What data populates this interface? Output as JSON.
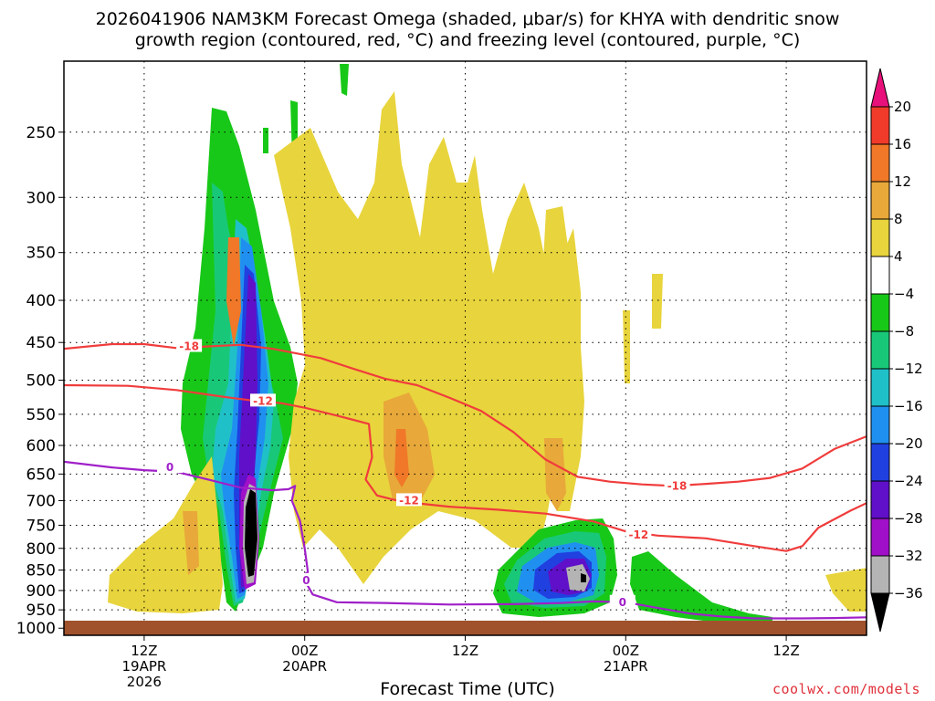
{
  "title_line1": "2026041906 NAM3KM Forecast Omega (shaded, μbar/s) for KHYA with dendritic snow",
  "title_line2": "growth region (contoured, red, °C) and freezing level (contoured, purple, °C)",
  "xlabel": "Forecast Time (UTC)",
  "credit": "coolwx.com/models",
  "chart_data": {
    "type": "heatmap",
    "title": "2026041906 NAM3KM Forecast Omega (shaded, μbar/s) for KHYA with dendritic snow growth region (contoured, red, °C) and freezing level (contoured, purple, °C)",
    "xlabel": "Forecast Time (UTC)",
    "ylabel": "",
    "y_axis": "pressure (hPa), inverted",
    "y_ticks": [
      250,
      300,
      350,
      400,
      450,
      500,
      550,
      600,
      650,
      700,
      750,
      800,
      850,
      900,
      950,
      1000
    ],
    "ylim": [
      1020,
      205
    ],
    "x_axis_hours_from_start": [
      0,
      50
    ],
    "x_ticks": [
      {
        "line1": "12Z",
        "line2": "19APR",
        "line3": "2026",
        "hour": 5
      },
      {
        "line1": "00Z",
        "line2": "20APR",
        "line3": "",
        "hour": 15
      },
      {
        "line1": "12Z",
        "line2": "",
        "line3": "",
        "hour": 25
      },
      {
        "line1": "00Z",
        "line2": "21APR",
        "line3": "",
        "hour": 35
      },
      {
        "line1": "12Z",
        "line2": "",
        "line3": "",
        "hour": 45
      }
    ],
    "grid": true,
    "colorbar": {
      "position": "right",
      "labels": [
        "20",
        "16",
        "12",
        "8",
        "4",
        "−4",
        "−8",
        "−12",
        "−16",
        "−20",
        "−24",
        "−28",
        "−32",
        "−36"
      ],
      "levels_top_to_bottom": [
        {
          "range": "> 20",
          "color": "#e8107a"
        },
        {
          "range": "16 to 20",
          "color": "#f03a2a"
        },
        {
          "range": "12 to 16",
          "color": "#f07828"
        },
        {
          "range": "8 to 12",
          "color": "#e8a83a"
        },
        {
          "range": "4 to 8",
          "color": "#e8d43c"
        },
        {
          "range": "-4 to 4",
          "color": "#ffffff"
        },
        {
          "range": "-8 to -4",
          "color": "#18c818"
        },
        {
          "range": "-12 to -8",
          "color": "#18c878"
        },
        {
          "range": "-16 to -12",
          "color": "#20c0c8"
        },
        {
          "range": "-20 to -16",
          "color": "#2090f0"
        },
        {
          "range": "-24 to -20",
          "color": "#2040e0"
        },
        {
          "range": "-28 to -24",
          "color": "#6010c8"
        },
        {
          "range": "-32 to -28",
          "color": "#a010c8"
        },
        {
          "range": "-36 to -32",
          "color": "#b4b4b4"
        },
        {
          "range": "< -36",
          "color": "#000000"
        }
      ]
    },
    "ground_color": "#a0522d",
    "contours": [
      {
        "name": "-18",
        "color": "#f03c3c",
        "label_points": [
          {
            "hour": 7.8,
            "p": 455
          },
          {
            "hour": 38.2,
            "p": 672
          }
        ],
        "points": [
          [
            0,
            458
          ],
          [
            3,
            452
          ],
          [
            5,
            452
          ],
          [
            7,
            457
          ],
          [
            9,
            455
          ],
          [
            11,
            453
          ],
          [
            13,
            458
          ],
          [
            16,
            470
          ],
          [
            18,
            484
          ],
          [
            20,
            498
          ],
          [
            22,
            507
          ],
          [
            24,
            525
          ],
          [
            26,
            545
          ],
          [
            28,
            578
          ],
          [
            30,
            624
          ],
          [
            32,
            655
          ],
          [
            34,
            664
          ],
          [
            36,
            669
          ],
          [
            38,
            672
          ],
          [
            40,
            668
          ],
          [
            42,
            664
          ],
          [
            44,
            657
          ],
          [
            46,
            640
          ],
          [
            48,
            606
          ],
          [
            50,
            585
          ]
        ]
      },
      {
        "name": "-12",
        "color": "#f03c3c",
        "label_points": [
          {
            "hour": 12.4,
            "p": 530
          },
          {
            "hour": 21.5,
            "p": 700
          },
          {
            "hour": 35.8,
            "p": 770
          }
        ],
        "points": [
          [
            0,
            507
          ],
          [
            4,
            508
          ],
          [
            7,
            514
          ],
          [
            10,
            524
          ],
          [
            12,
            530
          ],
          [
            13.5,
            533
          ],
          [
            15,
            540
          ],
          [
            17,
            552
          ],
          [
            19,
            565
          ],
          [
            19.2,
            620
          ],
          [
            18.8,
            660
          ],
          [
            19.5,
            690
          ],
          [
            21,
            702
          ],
          [
            24,
            712
          ],
          [
            27,
            718
          ],
          [
            30,
            726
          ],
          [
            33,
            742
          ],
          [
            35,
            763
          ],
          [
            37,
            772
          ],
          [
            40,
            778
          ],
          [
            43,
            795
          ],
          [
            45,
            806
          ],
          [
            46,
            795
          ],
          [
            47,
            755
          ],
          [
            49,
            720
          ],
          [
            50,
            705
          ]
        ]
      },
      {
        "name": "0",
        "color": "#a020c8",
        "label_points": [
          {
            "hour": 6.6,
            "p": 638
          },
          {
            "hour": 15.1,
            "p": 875
          },
          {
            "hour": 34.8,
            "p": 930
          }
        ],
        "points": [
          [
            0,
            628
          ],
          [
            3,
            638
          ],
          [
            5,
            643
          ],
          [
            7,
            646
          ],
          [
            9,
            660
          ],
          [
            11,
            675
          ],
          [
            13,
            680
          ],
          [
            14,
            678
          ],
          [
            14.4,
            672
          ],
          [
            14.2,
            700
          ],
          [
            14.7,
            740
          ],
          [
            15,
            800
          ],
          [
            15.2,
            855
          ],
          [
            14.6,
            870
          ],
          [
            15.0,
            875
          ],
          [
            15.5,
            910
          ],
          [
            17,
            930
          ],
          [
            20,
            932
          ],
          [
            24,
            936
          ],
          [
            28,
            935
          ],
          [
            31,
            932
          ],
          [
            33,
            928
          ],
          [
            35,
            930
          ],
          [
            37,
            945
          ],
          [
            39,
            960
          ],
          [
            41,
            968
          ],
          [
            43,
            973
          ],
          [
            46,
            973
          ],
          [
            48,
            972
          ],
          [
            50,
            970
          ]
        ]
      }
    ],
    "omega_regions": [
      {
        "value_range": "-8 to -4",
        "color": "#18c818",
        "hours": [
          7.3,
          10.0
        ],
        "p": [
          225,
          820
        ],
        "note": "upward-motion band 19APR 18Z-21Z"
      },
      {
        "value_range": "-12 to -8",
        "color": "#18c878",
        "hours": [
          8.3,
          14.5
        ],
        "p": [
          240,
          970
        ]
      },
      {
        "value_range": "-16 to -12",
        "color": "#20c0c8",
        "hours": [
          8.6,
          13.6
        ],
        "p": [
          300,
          960
        ]
      },
      {
        "value_range": "-20 to -16",
        "color": "#2090f0",
        "hours": [
          9.3,
          13.2
        ],
        "p": [
          340,
          955
        ]
      },
      {
        "value_range": "-24 to -20",
        "color": "#2040e0",
        "hours": [
          10.4,
          12.5
        ],
        "p": [
          360,
          940
        ]
      },
      {
        "value_range": "-28 to -24",
        "color": "#6010c8",
        "hours": [
          10.9,
          12.2
        ],
        "p": [
          380,
          930
        ]
      },
      {
        "value_range": "-32 to -28",
        "color": "#a010c8",
        "hours": [
          11.1,
          12.1
        ],
        "p": [
          650,
          920
        ]
      },
      {
        "value_range": "-36 to -32",
        "color": "#b4b4b4",
        "hours": [
          11.2,
          12.0
        ],
        "p": [
          680,
          910
        ]
      },
      {
        "value_range": "< -36",
        "color": "#000000",
        "hours": [
          11.4,
          11.9
        ],
        "p": [
          690,
          880
        ]
      },
      {
        "value_range": "-8 to -4",
        "color": "#18c818",
        "hours": [
          26.5,
          34.2
        ],
        "p": [
          760,
          985
        ],
        "note": "second upward-motion area 20APR 18Z-21APR 00Z"
      },
      {
        "value_range": "-12 to -8",
        "color": "#18c878",
        "hours": [
          27.0,
          33.8
        ],
        "p": [
          790,
          975
        ]
      },
      {
        "value_range": "-20 to -16",
        "color": "#2090f0",
        "hours": [
          27.5,
          33.3
        ],
        "p": [
          820,
          960
        ]
      },
      {
        "value_range": "-24 to -20",
        "color": "#2040e0",
        "hours": [
          28.5,
          32.8
        ],
        "p": [
          840,
          950
        ]
      },
      {
        "value_range": "-28 to -24",
        "color": "#6010c8",
        "hours": [
          29.8,
          32.5
        ],
        "p": [
          850,
          945
        ]
      },
      {
        "value_range": "-36 to -32",
        "color": "#b4b4b4",
        "hours": [
          31.2,
          32.3
        ],
        "p": [
          880,
          940
        ]
      },
      {
        "value_range": "-8 to -4",
        "color": "#18c818",
        "hours": [
          35.3,
          41.3
        ],
        "p": [
          900,
          1000
        ],
        "note": "weak upward motion 21APR early"
      },
      {
        "value_range": "4 to 8",
        "color": "#e8d43c",
        "hours": [
          3.0,
          17.0
        ],
        "p": [
          680,
          970
        ],
        "note": "sinking motion at low levels"
      },
      {
        "value_range": "4 to 8",
        "color": "#e8d43c",
        "hours": [
          15.0,
          30.0
        ],
        "p": [
          230,
          860
        ],
        "note": "broad sinking motion aloft"
      },
      {
        "value_range": "8 to 12",
        "color": "#e8a83a",
        "hours": [
          20.5,
          23.0
        ],
        "p": [
          500,
          700
        ]
      },
      {
        "value_range": "12 to 16",
        "color": "#f07828",
        "hours": [
          21.5,
          22.5
        ],
        "p": [
          590,
          680
        ]
      },
      {
        "value_range": "4 to 8",
        "color": "#e8d43c",
        "hours": [
          30.5,
          35.5
        ],
        "p": [
          300,
          720
        ]
      },
      {
        "value_range": "4 to 8",
        "color": "#e8d43c",
        "hours": [
          47.5,
          50.0
        ],
        "p": [
          900,
          970
        ]
      }
    ]
  }
}
